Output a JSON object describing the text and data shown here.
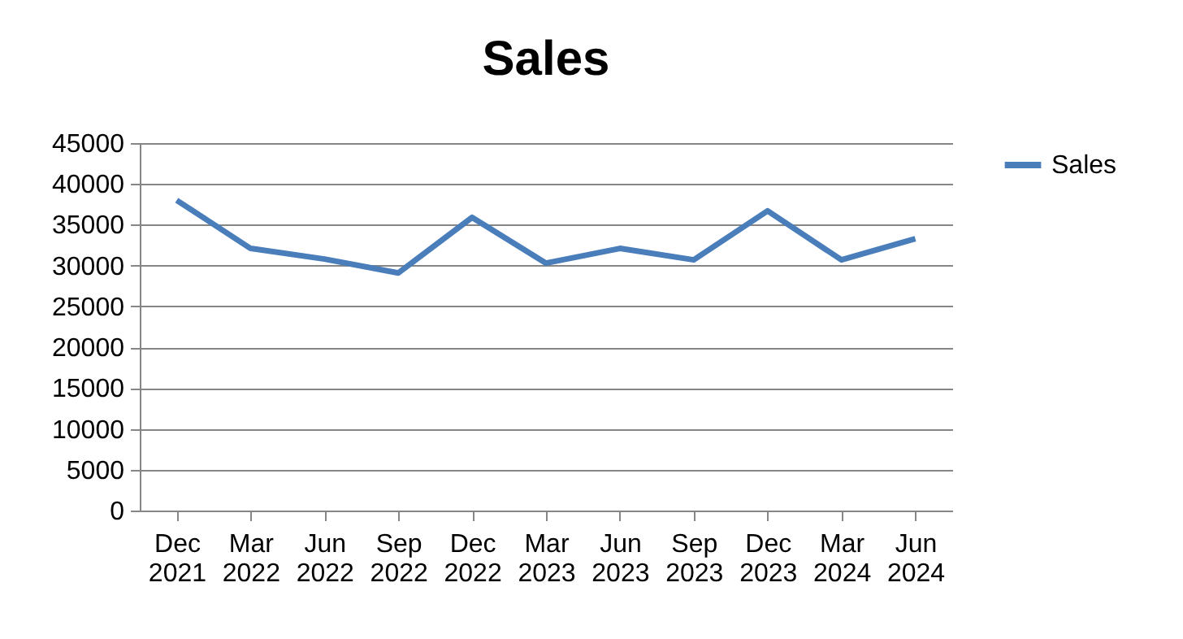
{
  "chart_data": {
    "type": "line",
    "title": "Sales",
    "categories": [
      "Dec 2021",
      "Mar 2022",
      "Jun 2022",
      "Sep 2022",
      "Dec 2022",
      "Mar 2023",
      "Jun 2023",
      "Sep 2023",
      "Dec 2023",
      "Mar 2024",
      "Jun 2024"
    ],
    "series": [
      {
        "name": "Sales",
        "color": "#4a7ebb",
        "values": [
          38000,
          32100,
          30800,
          29100,
          35900,
          30300,
          32100,
          30700,
          36700,
          30700,
          33300
        ]
      }
    ],
    "ylim": [
      0,
      45000
    ],
    "yticks": [
      0,
      5000,
      10000,
      15000,
      20000,
      25000,
      30000,
      35000,
      40000,
      45000
    ],
    "grid": "y",
    "legend": "right",
    "marker": "none",
    "line_style": "solid"
  }
}
